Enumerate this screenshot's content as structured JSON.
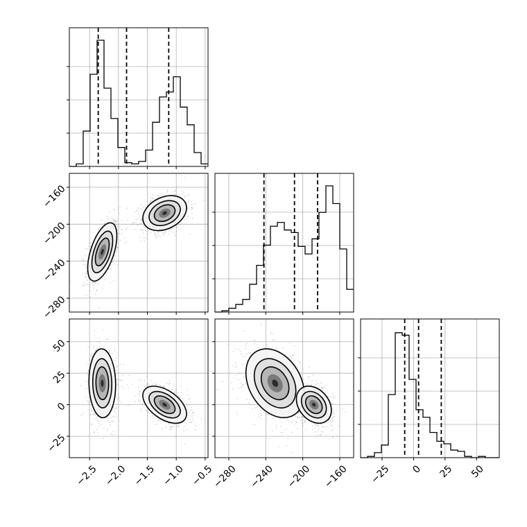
{
  "chart_data": {
    "type": "corner",
    "grid": true,
    "parameters": [
      {
        "range": [
          -2.85,
          -0.45
        ],
        "ticks": [
          -2.5,
          -2.0,
          -1.5,
          -1.0,
          -0.5
        ],
        "tick_labels": [
          "−2.5",
          "−2.0",
          "−1.5",
          "−1.0",
          "−0.5"
        ],
        "quantile_lines": [
          -2.35,
          -1.86,
          -1.13
        ],
        "hist_bin_width": 0.12,
        "hist": [
          0,
          0.02,
          0.28,
          0.73,
          1.0,
          0.62,
          0.38,
          0.15,
          0.03,
          0.02,
          0.04,
          0.13,
          0.35,
          0.55,
          0.59,
          0.71,
          0.47,
          0.33,
          0.11,
          0.02
        ]
      },
      {
        "range": [
          -295,
          -145
        ],
        "ticks": [
          -280,
          -240,
          -200,
          -160
        ],
        "tick_labels": [
          "−280",
          "−240",
          "−200",
          "−160"
        ],
        "quantile_lines": [
          -242,
          -209,
          -184
        ],
        "hist_bin_width": 7.5,
        "hist": [
          0,
          0.01,
          0.03,
          0.06,
          0.1,
          0.22,
          0.37,
          0.53,
          0.68,
          0.71,
          0.65,
          0.63,
          0.52,
          0.46,
          0.58,
          0.79,
          1.0,
          0.86,
          0.5,
          0.18
        ]
      },
      {
        "range": [
          -42,
          68
        ],
        "ticks": [
          -25,
          0,
          25,
          50
        ],
        "tick_labels": [
          "−25",
          "0",
          "25",
          "50"
        ],
        "quantile_lines": [
          -7,
          4,
          22
        ],
        "hist_bin_width": 5.5,
        "hist": [
          0,
          0.01,
          0.04,
          0.1,
          0.5,
          0.99,
          0.97,
          0.62,
          0.38,
          0.32,
          0.2,
          0.13,
          0.11,
          0.06,
          0.05,
          0.01,
          0,
          0.01,
          0,
          0
        ]
      }
    ],
    "joint_panels": [
      {
        "x_param": 0,
        "y_param": 1,
        "components": [
          {
            "mean": [
              -2.28,
              -230
            ],
            "sd": [
              0.12,
              15
            ],
            "rho": 0.55,
            "weight": 0.48
          },
          {
            "mean": [
              -1.2,
              -188
            ],
            "sd": [
              0.18,
              9
            ],
            "rho": 0.3,
            "weight": 0.52
          }
        ]
      },
      {
        "x_param": 0,
        "y_param": 2,
        "components": [
          {
            "mean": [
              -2.28,
              17
            ],
            "sd": [
              0.11,
              13
            ],
            "rho": -0.05,
            "weight": 0.48
          },
          {
            "mean": [
              -1.2,
              0
            ],
            "sd": [
              0.18,
              7
            ],
            "rho": -0.5,
            "weight": 0.52
          }
        ]
      },
      {
        "x_param": 1,
        "y_param": 2,
        "components": [
          {
            "mean": [
              -230,
              17
            ],
            "sd": [
              15,
              13
            ],
            "rho": -0.3,
            "weight": 0.48
          },
          {
            "mean": [
              -188,
              0
            ],
            "sd": [
              9,
              7
            ],
            "rho": -0.3,
            "weight": 0.52
          }
        ]
      }
    ]
  }
}
